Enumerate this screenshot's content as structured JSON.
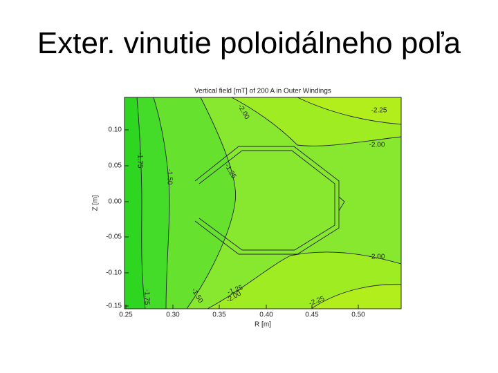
{
  "slide": {
    "title": "Exter. vinutie poloidálneho poľa"
  },
  "figure": {
    "title": "Vertical field [mT] of 200 A in Outer Windings",
    "x_label": "R [m]",
    "y_label": "Z [m]",
    "x_ticks": [
      "0.25",
      "0.30",
      "0.35",
      "0.40",
      "0.45",
      "0.50"
    ],
    "y_ticks": [
      "0.10",
      "0.05",
      "0.00",
      "-0.05",
      "-0.10",
      "-0.15"
    ],
    "contour_labels": [
      "-2.25",
      "-2.00",
      "-2.00",
      "-2.00",
      "-2.00",
      "-2.25",
      "-1.75",
      "-1.50",
      "-1.25",
      "-1.75",
      "-1.50",
      "-1.25"
    ]
  }
}
